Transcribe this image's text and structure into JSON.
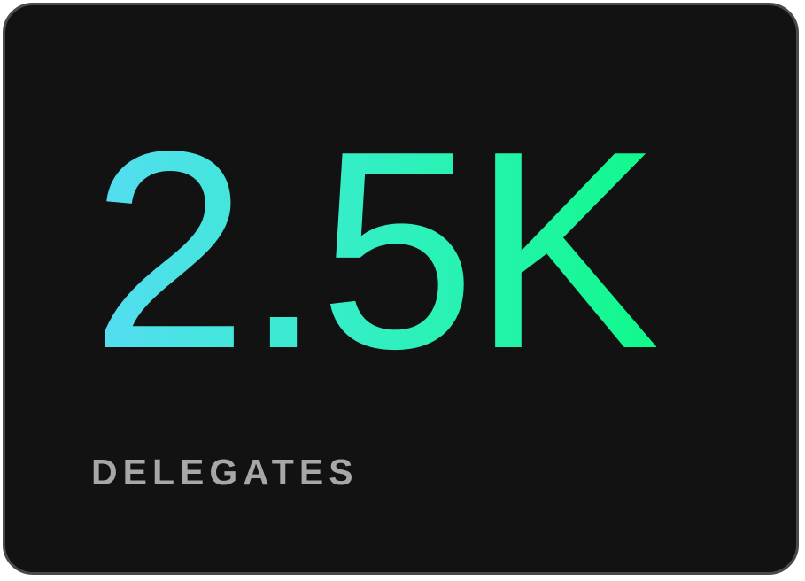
{
  "stat": {
    "value": "2.5K",
    "label": "DELEGATES"
  },
  "colors": {
    "card_background": "#121212",
    "card_border": "#4a4a4a",
    "value_gradient_start": "#55dcf2",
    "value_gradient_end": "#10f98a",
    "label": "#a7a7a7"
  }
}
